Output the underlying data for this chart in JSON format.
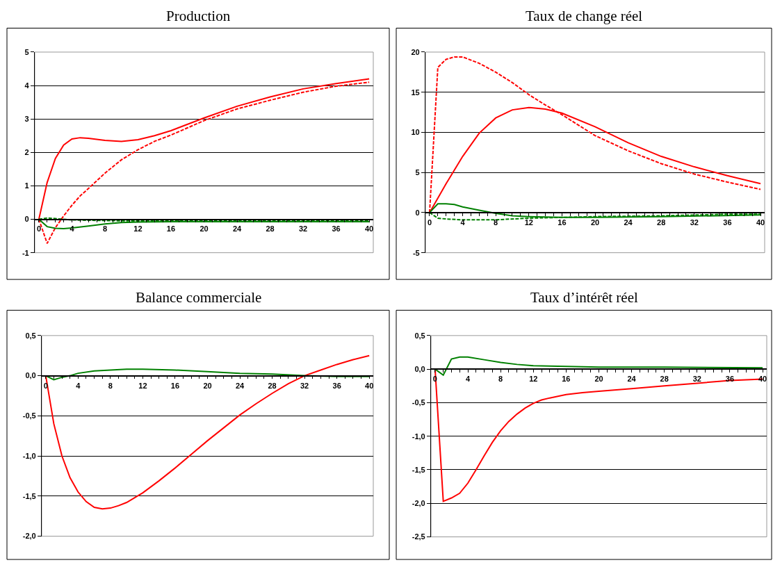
{
  "chart_data": [
    {
      "type": "line",
      "title": "Production",
      "xlim": [
        -0.5,
        40.5
      ],
      "xticks": [
        0,
        4,
        8,
        12,
        16,
        20,
        24,
        28,
        32,
        36,
        40
      ],
      "ylim": [
        -1,
        5
      ],
      "yticks": [
        -1,
        0,
        1,
        2,
        3,
        4,
        5
      ],
      "grid": "y",
      "series": [
        {
          "color": "#ff0000",
          "line_style": "solid",
          "x": [
            0,
            1,
            2,
            3,
            4,
            5,
            6,
            8,
            10,
            12,
            14,
            16,
            20,
            24,
            28,
            32,
            36,
            40
          ],
          "values": [
            0,
            1.1,
            1.82,
            2.22,
            2.4,
            2.44,
            2.42,
            2.36,
            2.33,
            2.38,
            2.5,
            2.65,
            3.03,
            3.38,
            3.66,
            3.9,
            4.06,
            4.2
          ]
        },
        {
          "color": "#ff0000",
          "line_style": "dashed",
          "x": [
            0,
            1,
            2,
            3,
            4,
            5,
            6,
            8,
            10,
            12,
            14,
            16,
            20,
            24,
            28,
            32,
            36,
            40
          ],
          "values": [
            0,
            -0.72,
            -0.25,
            0.1,
            0.42,
            0.7,
            0.92,
            1.38,
            1.78,
            2.08,
            2.33,
            2.52,
            2.95,
            3.3,
            3.56,
            3.8,
            3.98,
            4.1
          ]
        },
        {
          "color": "#008000",
          "line_style": "solid",
          "x": [
            0,
            1,
            2,
            3,
            4,
            6,
            8,
            10,
            12,
            16,
            20,
            40
          ],
          "values": [
            0,
            -0.22,
            -0.27,
            -0.28,
            -0.26,
            -0.2,
            -0.14,
            -0.1,
            -0.08,
            -0.07,
            -0.07,
            -0.07
          ]
        },
        {
          "color": "#008000",
          "line_style": "dashed",
          "x": [
            0,
            1,
            2,
            4,
            8,
            12,
            20,
            40
          ],
          "values": [
            0,
            0.04,
            0.02,
            -0.02,
            -0.04,
            -0.05,
            -0.05,
            -0.05
          ]
        }
      ]
    },
    {
      "type": "line",
      "title": "Taux de change réel",
      "xlim": [
        -0.5,
        40.5
      ],
      "xticks": [
        0,
        4,
        8,
        12,
        16,
        20,
        24,
        28,
        32,
        36,
        40
      ],
      "ylim": [
        -5,
        20
      ],
      "yticks": [
        -5,
        0,
        5,
        10,
        15,
        20
      ],
      "grid": "y",
      "series": [
        {
          "color": "#ff0000",
          "line_style": "solid",
          "x": [
            0,
            2,
            4,
            6,
            8,
            10,
            12,
            14,
            16,
            20,
            24,
            28,
            32,
            36,
            40
          ],
          "values": [
            0,
            3.6,
            7.0,
            9.9,
            11.8,
            12.8,
            13.1,
            12.9,
            12.4,
            10.7,
            8.7,
            7.0,
            5.7,
            4.6,
            3.6
          ]
        },
        {
          "color": "#ff0000",
          "line_style": "dashed",
          "x": [
            0,
            1,
            2,
            3,
            4,
            6,
            8,
            10,
            12,
            14,
            16,
            20,
            24,
            28,
            32,
            36,
            40
          ],
          "values": [
            0,
            18.1,
            19.1,
            19.4,
            19.4,
            18.6,
            17.5,
            16.2,
            14.7,
            13.4,
            12.2,
            9.6,
            7.7,
            6.1,
            4.8,
            3.8,
            2.9
          ]
        },
        {
          "color": "#008000",
          "line_style": "solid",
          "x": [
            0,
            1,
            2,
            3,
            4,
            6,
            8,
            10,
            12,
            16,
            20,
            28,
            40
          ],
          "values": [
            0,
            1.1,
            1.1,
            1.0,
            0.7,
            0.3,
            -0.1,
            -0.4,
            -0.5,
            -0.6,
            -0.6,
            -0.5,
            -0.3
          ]
        },
        {
          "color": "#008000",
          "line_style": "dashed",
          "x": [
            0,
            1,
            2,
            4,
            6,
            8,
            12,
            16,
            20,
            28,
            36,
            40
          ],
          "values": [
            0,
            -0.7,
            -0.8,
            -0.9,
            -0.9,
            -0.9,
            -0.7,
            -0.6,
            -0.5,
            -0.4,
            -0.2,
            -0.2
          ]
        }
      ]
    },
    {
      "type": "line",
      "title": "Balance commerciale",
      "xlim": [
        -0.5,
        40.5
      ],
      "xticks": [
        0,
        4,
        8,
        12,
        16,
        20,
        24,
        28,
        32,
        36,
        40
      ],
      "ylim": [
        -2,
        0.5
      ],
      "yticks": [
        {
          "value": -2,
          "label": "-2,0"
        },
        {
          "value": -1.5,
          "label": "-1,5"
        },
        {
          "value": -1,
          "label": "-1,0"
        },
        {
          "value": -0.5,
          "label": "-0,5"
        },
        {
          "value": 0,
          "label": "0,0"
        },
        {
          "value": 0.5,
          "label": "0,5"
        }
      ],
      "grid": "y",
      "series": [
        {
          "color": "#ff0000",
          "line_style": "solid",
          "x": [
            0,
            1,
            2,
            3,
            4,
            5,
            6,
            7,
            8,
            9,
            10,
            11,
            12,
            14,
            16,
            18,
            20,
            22,
            24,
            26,
            28,
            30,
            32,
            34,
            36,
            38,
            40
          ],
          "values": [
            0,
            -0.6,
            -1.0,
            -1.27,
            -1.45,
            -1.57,
            -1.64,
            -1.66,
            -1.65,
            -1.62,
            -1.58,
            -1.52,
            -1.46,
            -1.31,
            -1.15,
            -0.98,
            -0.81,
            -0.65,
            -0.49,
            -0.35,
            -0.22,
            -0.1,
            0.0,
            0.07,
            0.14,
            0.2,
            0.25
          ]
        },
        {
          "color": "#008000",
          "line_style": "solid",
          "x": [
            0,
            1,
            2,
            3,
            4,
            6,
            8,
            10,
            12,
            16,
            20,
            24,
            28,
            32,
            36,
            40
          ],
          "values": [
            0,
            -0.05,
            -0.02,
            0.0,
            0.03,
            0.06,
            0.07,
            0.08,
            0.08,
            0.07,
            0.05,
            0.03,
            0.02,
            0.0,
            -0.01,
            -0.01
          ]
        }
      ]
    },
    {
      "type": "line",
      "title": "Taux d’intérêt réel",
      "xlim": [
        -0.5,
        40.5
      ],
      "xticks": [
        0,
        4,
        8,
        12,
        16,
        20,
        24,
        28,
        32,
        36,
        40
      ],
      "ylim": [
        -2.5,
        0.5
      ],
      "yticks": [
        {
          "value": -2.5,
          "label": "-2,5"
        },
        {
          "value": -2,
          "label": "-2,0"
        },
        {
          "value": -1.5,
          "label": "-1,5"
        },
        {
          "value": -1,
          "label": "-1,0"
        },
        {
          "value": -0.5,
          "label": "-0,5"
        },
        {
          "value": 0,
          "label": "0,0"
        },
        {
          "value": 0.5,
          "label": "0,5"
        }
      ],
      "grid": "y",
      "series": [
        {
          "color": "#ff0000",
          "line_style": "solid",
          "x": [
            0,
            1,
            2,
            3,
            4,
            5,
            6,
            7,
            8,
            9,
            10,
            11,
            12,
            13,
            14,
            16,
            18,
            20,
            24,
            28,
            32,
            36,
            40
          ],
          "values": [
            0,
            -1.97,
            -1.92,
            -1.85,
            -1.7,
            -1.5,
            -1.29,
            -1.09,
            -0.92,
            -0.78,
            -0.67,
            -0.58,
            -0.51,
            -0.46,
            -0.43,
            -0.38,
            -0.35,
            -0.33,
            -0.29,
            -0.25,
            -0.21,
            -0.17,
            -0.15
          ]
        },
        {
          "color": "#008000",
          "line_style": "solid",
          "x": [
            0,
            1,
            2,
            3,
            4,
            6,
            8,
            10,
            12,
            16,
            20,
            28,
            40
          ],
          "values": [
            0,
            -0.09,
            0.15,
            0.18,
            0.18,
            0.14,
            0.1,
            0.07,
            0.05,
            0.04,
            0.03,
            0.03,
            0.02
          ]
        }
      ]
    }
  ]
}
